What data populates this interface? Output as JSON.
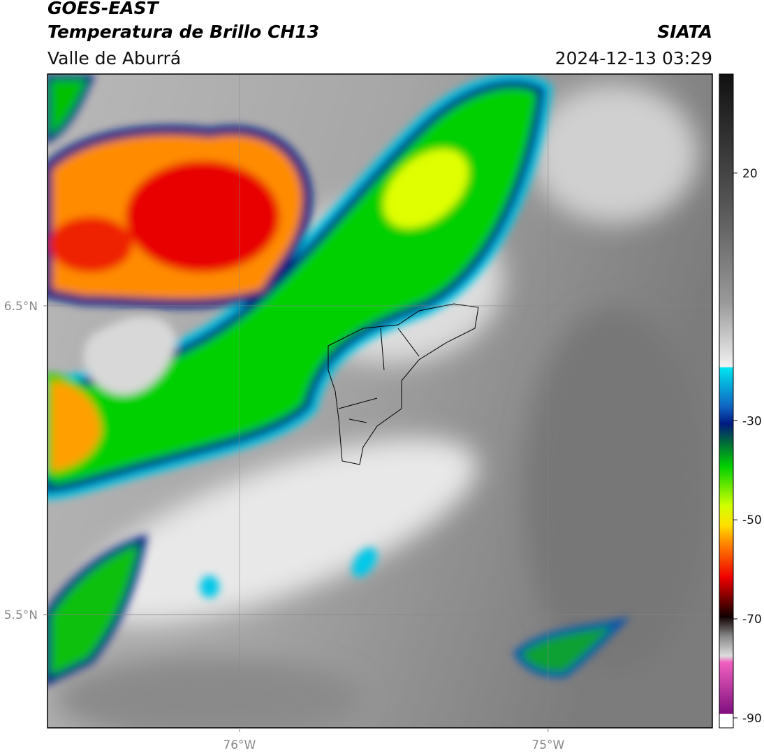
{
  "header": {
    "satellite": "GOES-EAST",
    "product": "Temperatura de Brillo CH13",
    "source": "SIATA",
    "region": "Valle de Aburrá",
    "datetime": "2024-12-13 03:29"
  },
  "map": {
    "xlim": [
      -76.622,
      -74.468
    ],
    "ylim": [
      5.133,
      7.251
    ],
    "grid": true,
    "xticks": [
      {
        "value": -76,
        "label": "76°W"
      },
      {
        "value": -75,
        "label": "75°W"
      }
    ],
    "yticks": [
      {
        "value": 6.5,
        "label": "6.5°N"
      },
      {
        "value": 5.5,
        "label": "5.5°N"
      }
    ]
  },
  "colorbar": {
    "clim": [
      -92,
      40
    ],
    "ticks": [
      20,
      -30,
      -50,
      -70,
      -90
    ]
  }
}
